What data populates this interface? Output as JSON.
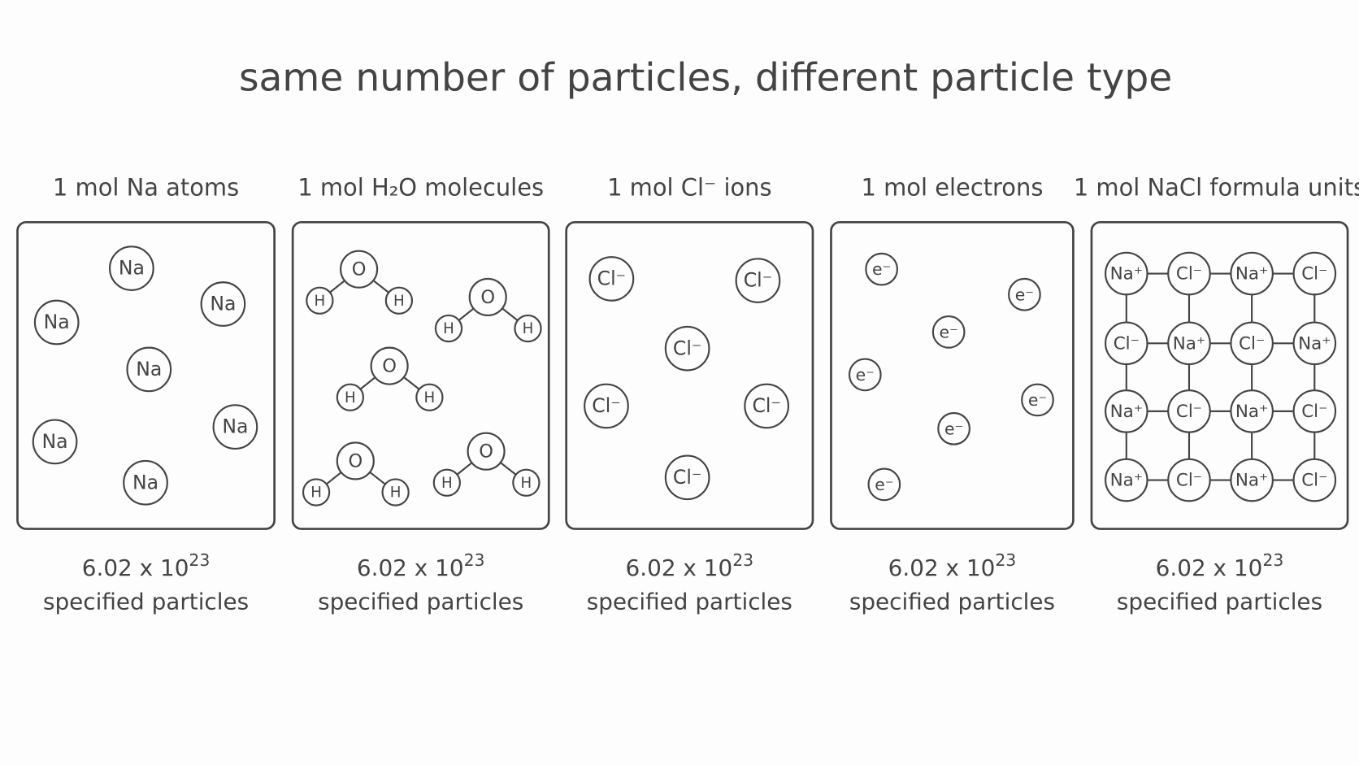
{
  "title": "same number of particles, different particle type",
  "panels": [
    {
      "label": "1 mol Na atoms",
      "particles": [
        "Na",
        "Na",
        "Na",
        "Na",
        "Na",
        "Na",
        "Na"
      ],
      "count_base": "6.02 x 10",
      "count_exponent": "23",
      "caption": "specified particles"
    },
    {
      "label": "1 mol H₂O molecules",
      "particles": [
        "O",
        "H",
        "H",
        "O",
        "H",
        "H",
        "O",
        "H",
        "H",
        "O",
        "H",
        "H",
        "O",
        "H",
        "H"
      ],
      "count_base": "6.02 x 10",
      "count_exponent": "23",
      "caption": "specified particles"
    },
    {
      "label": "1 mol Cl⁻ ions",
      "particles": [
        "Cl⁻",
        "Cl⁻",
        "Cl⁻",
        "Cl⁻",
        "Cl⁻",
        "Cl⁻"
      ],
      "count_base": "6.02 x 10",
      "count_exponent": "23",
      "caption": "specified particles"
    },
    {
      "label": "1 mol electrons",
      "particles": [
        "e⁻",
        "e⁻",
        "e⁻",
        "e⁻",
        "e⁻",
        "e⁻",
        "e⁻"
      ],
      "count_base": "6.02 x 10",
      "count_exponent": "23",
      "caption": "specified particles"
    },
    {
      "label": "1 mol NaCl formula units",
      "particles": [
        "Na⁺",
        "Cl⁻",
        "Na⁺",
        "Cl⁻",
        "Cl⁻",
        "Na⁺",
        "Cl⁻",
        "Na⁺",
        "Na⁺",
        "Cl⁻",
        "Na⁺",
        "Cl⁻",
        "Na⁺",
        "Cl⁻",
        "Na⁺",
        "Cl⁻"
      ],
      "count_base": "6.02 x 10",
      "count_exponent": "23",
      "caption": "specified particles"
    }
  ]
}
